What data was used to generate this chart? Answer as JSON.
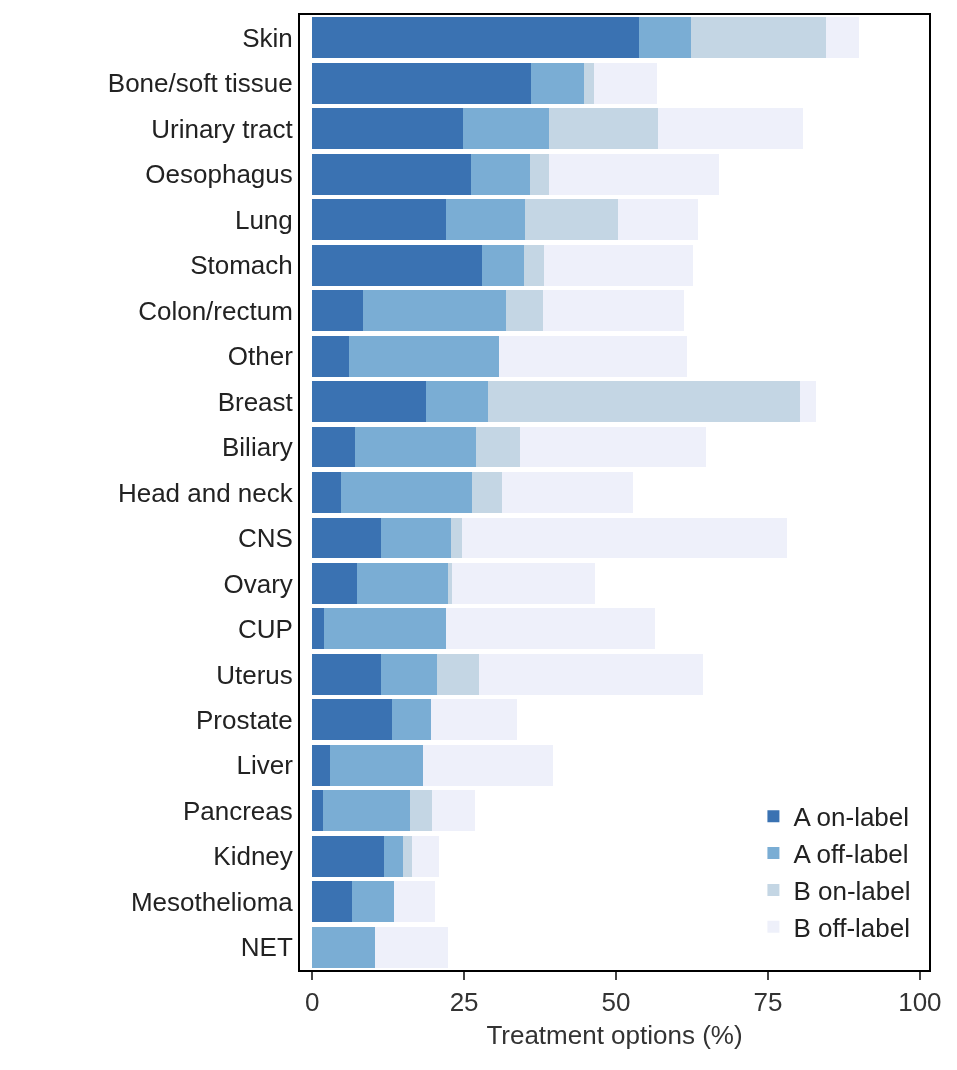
{
  "chart_data": {
    "type": "bar",
    "orientation": "horizontal",
    "stacked": true,
    "xlabel": "Treatment options (%)",
    "categories": [
      "Skin",
      "Bone/soft tissue",
      "Urinary tract",
      "Oesophagus",
      "Lung",
      "Stomach",
      "Colon/rectum",
      "Other",
      "Breast",
      "Biliary",
      "Head and neck",
      "CNS",
      "Ovary",
      "CUP",
      "Uterus",
      "Prostate",
      "Liver",
      "Pancreas",
      "Kidney",
      "Mesothelioma",
      "NET"
    ],
    "series": [
      {
        "name": "A on-label",
        "color": "#3a72b2",
        "values": [
          53.7,
          36.0,
          24.8,
          26.2,
          22.1,
          27.9,
          8.3,
          6.1,
          18.7,
          7.1,
          4.7,
          11.3,
          7.4,
          2.0,
          11.4,
          13.2,
          2.9,
          1.8,
          11.9,
          6.6,
          0
        ]
      },
      {
        "name": "A off-label",
        "color": "#7aadd4",
        "values": [
          8.6,
          8.8,
          14.2,
          9.6,
          13.0,
          6.9,
          23.6,
          24.6,
          10.2,
          19.9,
          21.6,
          11.5,
          15.0,
          20.1,
          9.1,
          6.3,
          15.3,
          14.3,
          3.1,
          6.8,
          10.3
        ]
      },
      {
        "name": "B on-label",
        "color": "#c4d6e4",
        "values": [
          22.3,
          1.5,
          17.9,
          3.1,
          15.2,
          3.3,
          6.1,
          0,
          51.3,
          7.2,
          5.0,
          1.8,
          0.6,
          0,
          6.9,
          0,
          0,
          3.7,
          1.4,
          0,
          0
        ]
      },
      {
        "name": "B off-label",
        "color": "#eef0fa",
        "values": [
          5.3,
          10.4,
          23.8,
          28.0,
          13.2,
          24.5,
          23.2,
          30.9,
          2.7,
          30.6,
          21.5,
          53.6,
          23.6,
          34.3,
          36.9,
          14.2,
          21.4,
          7.0,
          4.5,
          6.8,
          12.0
        ]
      }
    ],
    "xlim": [
      -2,
      101.5
    ],
    "xticks": [
      0,
      25,
      50,
      75,
      100
    ],
    "legend": "bottom right"
  }
}
